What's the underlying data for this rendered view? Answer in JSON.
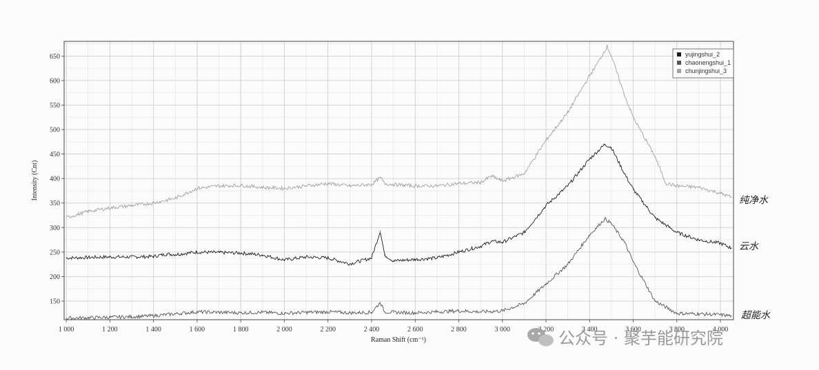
{
  "chart_data": {
    "type": "line",
    "xlabel": "Raman Shift (cm⁻¹)",
    "ylabel": "Intensity (Cnt)",
    "xlim": [
      990,
      4060
    ],
    "ylim": [
      112,
      680
    ],
    "x_ticks": [
      "1 000",
      "1 200",
      "1 400",
      "1 600",
      "1 800",
      "2 000",
      "2 200",
      "2 400",
      "2 600",
      "2 800",
      "3 000",
      "3 200",
      "3 400",
      "3 600",
      "3 800",
      "4 000"
    ],
    "y_ticks": [
      150,
      200,
      250,
      300,
      350,
      400,
      450,
      500,
      550,
      600,
      650
    ],
    "grid": true,
    "legend_position": "top-right",
    "series": [
      {
        "name": "yujingshui_2",
        "color": "#1e1e1e",
        "points": [
          [
            1000,
            238
          ],
          [
            1100,
            239
          ],
          [
            1200,
            240
          ],
          [
            1300,
            240
          ],
          [
            1400,
            241
          ],
          [
            1460,
            246
          ],
          [
            1500,
            245
          ],
          [
            1600,
            250
          ],
          [
            1700,
            249
          ],
          [
            1800,
            248
          ],
          [
            1900,
            244
          ],
          [
            2000,
            234
          ],
          [
            2100,
            240
          ],
          [
            2200,
            238
          ],
          [
            2300,
            226
          ],
          [
            2400,
            238
          ],
          [
            2440,
            293
          ],
          [
            2460,
            244
          ],
          [
            2500,
            232
          ],
          [
            2600,
            235
          ],
          [
            2700,
            238
          ],
          [
            2800,
            250
          ],
          [
            2900,
            262
          ],
          [
            2950,
            272
          ],
          [
            3000,
            270
          ],
          [
            3100,
            290
          ],
          [
            3200,
            345
          ],
          [
            3300,
            385
          ],
          [
            3400,
            440
          ],
          [
            3470,
            470
          ],
          [
            3500,
            463
          ],
          [
            3560,
            410
          ],
          [
            3600,
            378
          ],
          [
            3700,
            320
          ],
          [
            3800,
            290
          ],
          [
            3900,
            275
          ],
          [
            4000,
            268
          ],
          [
            4050,
            258
          ]
        ]
      },
      {
        "name": "chaonengshui_1",
        "color": "#555555",
        "points": [
          [
            1000,
            115
          ],
          [
            1100,
            116
          ],
          [
            1200,
            117
          ],
          [
            1300,
            118
          ],
          [
            1400,
            120
          ],
          [
            1500,
            124
          ],
          [
            1600,
            128
          ],
          [
            1700,
            127
          ],
          [
            1800,
            126
          ],
          [
            1900,
            127
          ],
          [
            2000,
            125
          ],
          [
            2100,
            127
          ],
          [
            2200,
            128
          ],
          [
            2300,
            126
          ],
          [
            2400,
            127
          ],
          [
            2440,
            147
          ],
          [
            2460,
            128
          ],
          [
            2500,
            127
          ],
          [
            2600,
            126
          ],
          [
            2700,
            128
          ],
          [
            2800,
            130
          ],
          [
            2900,
            128
          ],
          [
            3000,
            130
          ],
          [
            3100,
            145
          ],
          [
            3200,
            185
          ],
          [
            3300,
            225
          ],
          [
            3400,
            285
          ],
          [
            3470,
            318
          ],
          [
            3500,
            308
          ],
          [
            3560,
            270
          ],
          [
            3600,
            230
          ],
          [
            3700,
            150
          ],
          [
            3800,
            125
          ],
          [
            3900,
            124
          ],
          [
            4000,
            122
          ],
          [
            4050,
            120
          ]
        ]
      },
      {
        "name": "chunjingshui_3",
        "color": "#a0a0a0",
        "points": [
          [
            1000,
            320
          ],
          [
            1100,
            333
          ],
          [
            1200,
            340
          ],
          [
            1300,
            345
          ],
          [
            1400,
            350
          ],
          [
            1500,
            360
          ],
          [
            1600,
            380
          ],
          [
            1700,
            385
          ],
          [
            1800,
            386
          ],
          [
            1900,
            382
          ],
          [
            2000,
            380
          ],
          [
            2100,
            385
          ],
          [
            2200,
            390
          ],
          [
            2300,
            385
          ],
          [
            2400,
            388
          ],
          [
            2440,
            402
          ],
          [
            2460,
            390
          ],
          [
            2500,
            388
          ],
          [
            2600,
            385
          ],
          [
            2700,
            385
          ],
          [
            2800,
            390
          ],
          [
            2900,
            392
          ],
          [
            2950,
            405
          ],
          [
            3000,
            395
          ],
          [
            3100,
            410
          ],
          [
            3200,
            478
          ],
          [
            3300,
            535
          ],
          [
            3400,
            610
          ],
          [
            3450,
            645
          ],
          [
            3480,
            670
          ],
          [
            3500,
            650
          ],
          [
            3560,
            570
          ],
          [
            3600,
            525
          ],
          [
            3700,
            445
          ],
          [
            3750,
            390
          ],
          [
            3800,
            385
          ],
          [
            3900,
            382
          ],
          [
            4000,
            370
          ],
          [
            4050,
            362
          ]
        ]
      }
    ]
  },
  "annotations": {
    "handwritten": [
      "纯净水",
      "云水",
      "超能水"
    ]
  },
  "watermark": {
    "text": "公众号 · 聚芋能研究院"
  }
}
